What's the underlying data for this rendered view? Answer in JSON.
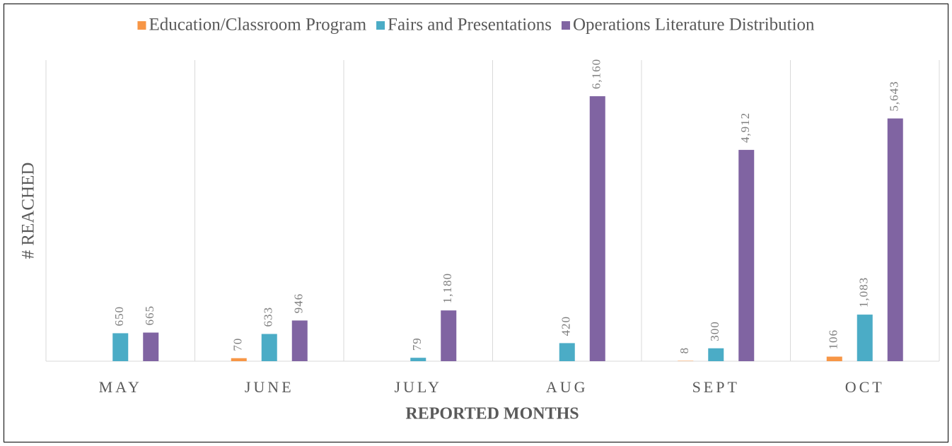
{
  "chart_data": {
    "type": "bar",
    "categories": [
      "MAY",
      "JUNE",
      "JULY",
      "AUG",
      "SEPT",
      "OCT"
    ],
    "series": [
      {
        "name": "Education/Classroom Program",
        "color": "#f79646",
        "values": [
          null,
          70,
          null,
          null,
          8,
          106
        ]
      },
      {
        "name": "Fairs and Presentations",
        "color": "#4bacc6",
        "values": [
          650,
          633,
          79,
          420,
          300,
          1083
        ],
        "value_labels": [
          "650",
          "633",
          "79",
          "420",
          "300",
          "1,083"
        ]
      },
      {
        "name": "Operations Literature Distribution",
        "color": "#8064a2",
        "values": [
          665,
          946,
          1180,
          6160,
          4912,
          5643
        ],
        "value_labels": [
          "665",
          "946",
          "1,180",
          "6,160",
          "4,912",
          "5,643"
        ]
      }
    ],
    "x_label": "REPORTED MONTHS",
    "y_label": "# REACHED",
    "ylim": [
      0,
      7000
    ],
    "legend": "top"
  }
}
